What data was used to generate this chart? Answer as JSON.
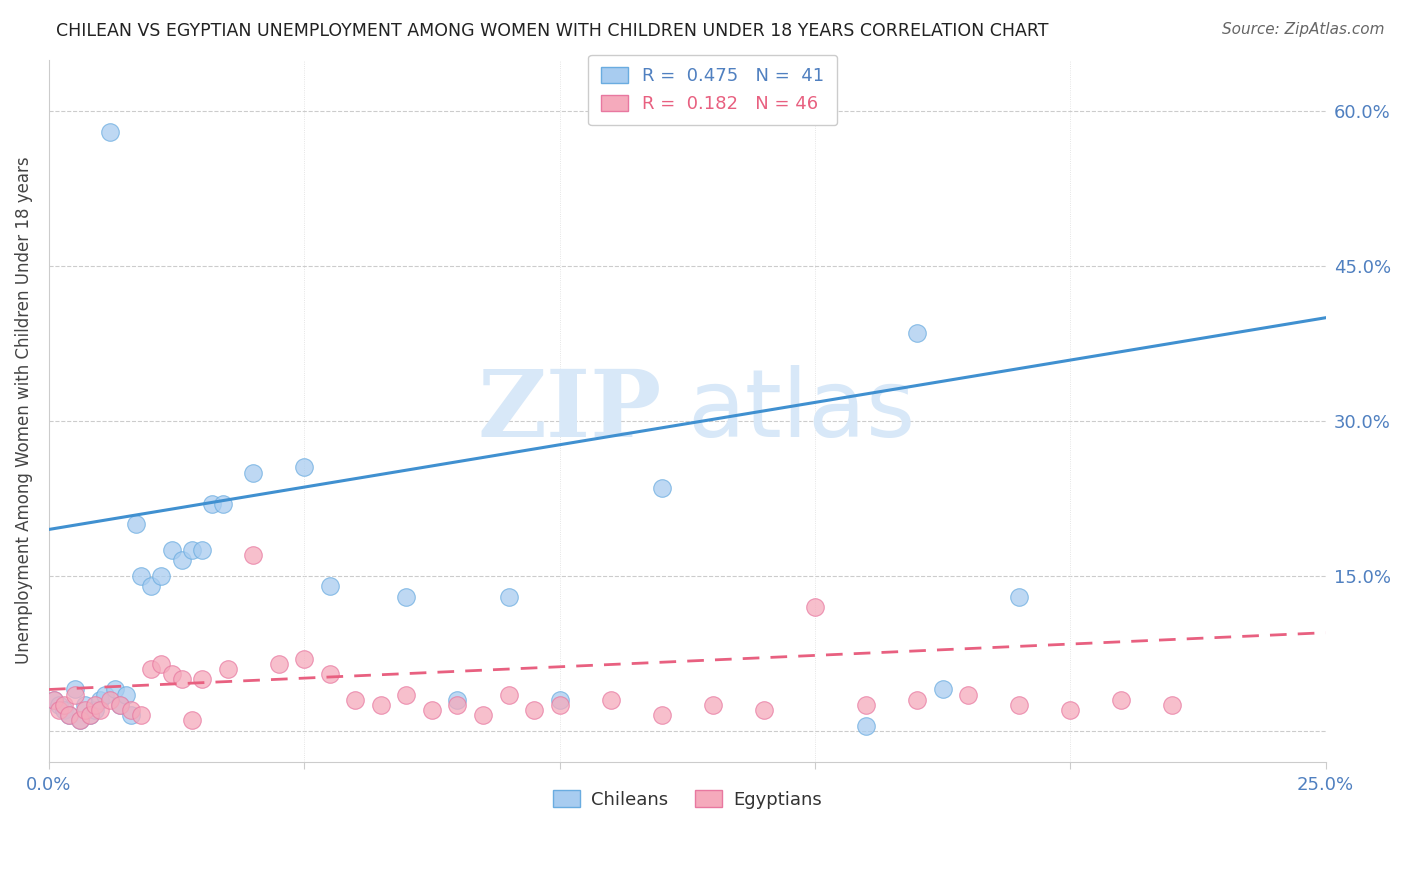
{
  "title": "CHILEAN VS EGYPTIAN UNEMPLOYMENT AMONG WOMEN WITH CHILDREN UNDER 18 YEARS CORRELATION CHART",
  "source": "Source: ZipAtlas.com",
  "ylabel": "Unemployment Among Women with Children Under 18 years",
  "xlim": [
    0.0,
    0.25
  ],
  "ylim": [
    -0.03,
    0.65
  ],
  "yticks": [
    0.0,
    0.15,
    0.3,
    0.45,
    0.6
  ],
  "ytick_labels": [
    "",
    "15.0%",
    "30.0%",
    "45.0%",
    "60.0%"
  ],
  "xticks": [
    0.0,
    0.05,
    0.1,
    0.15,
    0.2,
    0.25
  ],
  "xtick_labels": [
    "0.0%",
    "",
    "",
    "",
    "",
    "25.0%"
  ],
  "legend_label1": "Chileans",
  "legend_label2": "Egyptians",
  "blue_scatter_color": "#A8CCF0",
  "blue_edge_color": "#6AACE0",
  "pink_scatter_color": "#F5AABC",
  "pink_edge_color": "#E878A0",
  "blue_line_color": "#4090D0",
  "pink_line_color": "#E86080",
  "axis_color": "#5080C0",
  "text_color": "#5080C0",
  "watermark_color": "#D8E8F8",
  "chilean_x": [
    0.001,
    0.002,
    0.003,
    0.004,
    0.005,
    0.006,
    0.007,
    0.008,
    0.009,
    0.01,
    0.011,
    0.012,
    0.013,
    0.014,
    0.015,
    0.016,
    0.017,
    0.018,
    0.02,
    0.022,
    0.024,
    0.026,
    0.028,
    0.03,
    0.032,
    0.034,
    0.04,
    0.05,
    0.055,
    0.07,
    0.08,
    0.09,
    0.1,
    0.12,
    0.16,
    0.17,
    0.175,
    0.19
  ],
  "chilean_y": [
    0.03,
    0.025,
    0.02,
    0.015,
    0.04,
    0.01,
    0.025,
    0.015,
    0.02,
    0.03,
    0.035,
    0.58,
    0.04,
    0.025,
    0.035,
    0.015,
    0.2,
    0.15,
    0.14,
    0.15,
    0.175,
    0.165,
    0.175,
    0.175,
    0.22,
    0.22,
    0.25,
    0.255,
    0.14,
    0.13,
    0.03,
    0.13,
    0.03,
    0.235,
    0.005,
    0.385,
    0.04,
    0.13
  ],
  "egyptian_x": [
    0.001,
    0.002,
    0.003,
    0.004,
    0.005,
    0.006,
    0.007,
    0.008,
    0.009,
    0.01,
    0.012,
    0.014,
    0.016,
    0.018,
    0.02,
    0.022,
    0.024,
    0.026,
    0.028,
    0.03,
    0.035,
    0.04,
    0.045,
    0.05,
    0.055,
    0.06,
    0.065,
    0.07,
    0.075,
    0.08,
    0.085,
    0.09,
    0.095,
    0.1,
    0.11,
    0.12,
    0.13,
    0.14,
    0.15,
    0.16,
    0.17,
    0.18,
    0.19,
    0.2,
    0.21,
    0.22
  ],
  "egyptian_y": [
    0.03,
    0.02,
    0.025,
    0.015,
    0.035,
    0.01,
    0.02,
    0.015,
    0.025,
    0.02,
    0.03,
    0.025,
    0.02,
    0.015,
    0.06,
    0.065,
    0.055,
    0.05,
    0.01,
    0.05,
    0.06,
    0.17,
    0.065,
    0.07,
    0.055,
    0.03,
    0.025,
    0.035,
    0.02,
    0.025,
    0.015,
    0.035,
    0.02,
    0.025,
    0.03,
    0.015,
    0.025,
    0.02,
    0.12,
    0.025,
    0.03,
    0.035,
    0.025,
    0.02,
    0.03,
    0.025
  ],
  "blue_trendline_x": [
    0.0,
    0.25
  ],
  "blue_trendline_y": [
    0.195,
    0.4
  ],
  "pink_trendline_x": [
    0.0,
    0.25
  ],
  "pink_trendline_y": [
    0.04,
    0.095
  ]
}
